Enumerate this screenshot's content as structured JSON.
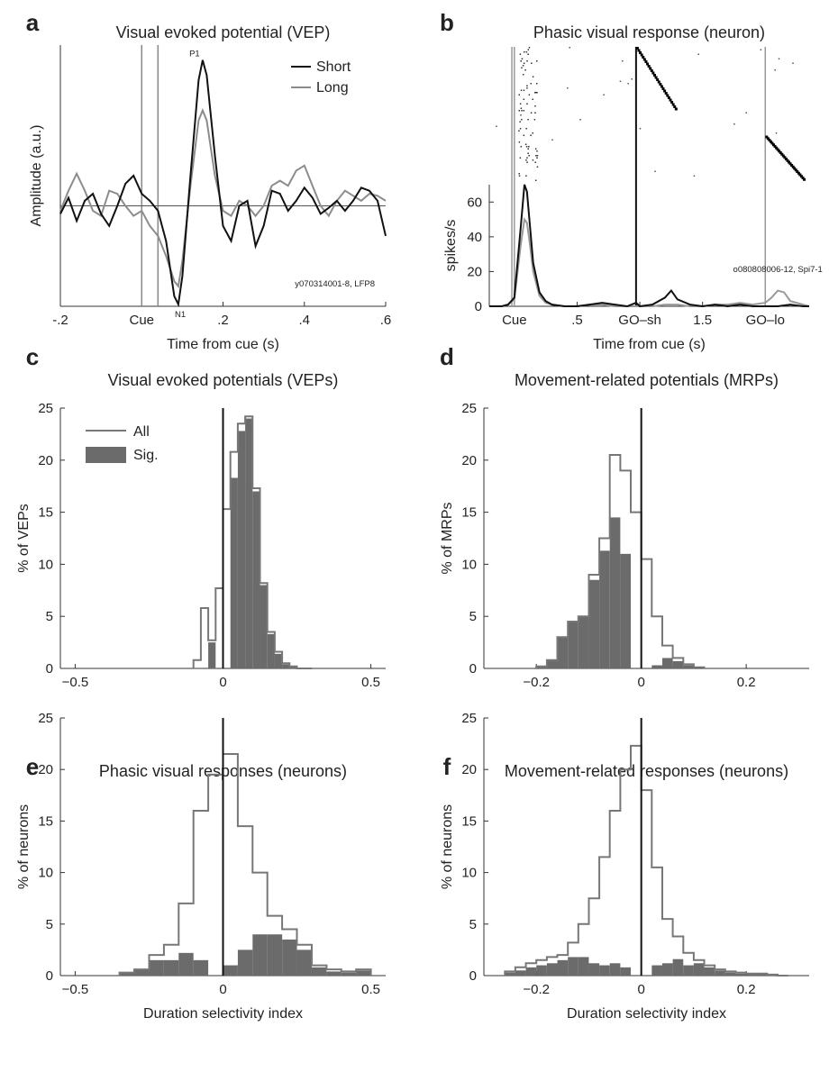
{
  "chart_data": [
    {
      "id": "a",
      "panel_label": "a",
      "type": "line",
      "title": "Visual evoked potential (VEP)",
      "xlabel": "Time from cue (s)",
      "ylabel": "Amplitude (a.u.)",
      "xlim": [
        -0.2,
        0.6
      ],
      "ylim": [
        -1.0,
        1.6
      ],
      "xticks": [
        -0.2,
        0,
        0.2,
        0.4,
        0.6
      ],
      "xticklabels": [
        "-.2",
        "Cue",
        ".2",
        ".4",
        ".6"
      ],
      "legend_position": "top-right",
      "vertical_lines": [
        0,
        0.04
      ],
      "horizontal_line": 0,
      "peak_labels": [
        {
          "text": "P1",
          "x": 0.13,
          "y": 1.45
        },
        {
          "text": "N1",
          "x": 0.095,
          "y": -0.98
        }
      ],
      "annotation": "y070314001-8, LFP8",
      "series": [
        {
          "name": "Short",
          "color": "#111111",
          "x": [
            -0.2,
            -0.18,
            -0.16,
            -0.14,
            -0.12,
            -0.1,
            -0.08,
            -0.06,
            -0.04,
            -0.02,
            0,
            0.02,
            0.04,
            0.06,
            0.08,
            0.09,
            0.1,
            0.12,
            0.14,
            0.15,
            0.16,
            0.18,
            0.2,
            0.22,
            0.24,
            0.26,
            0.28,
            0.3,
            0.32,
            0.34,
            0.36,
            0.38,
            0.4,
            0.42,
            0.44,
            0.46,
            0.48,
            0.5,
            0.52,
            0.54,
            0.56,
            0.58,
            0.6
          ],
          "y": [
            -0.08,
            0.08,
            -0.15,
            0.05,
            0.12,
            -0.08,
            -0.2,
            0.0,
            0.22,
            0.3,
            0.12,
            0.05,
            -0.05,
            -0.35,
            -0.9,
            -0.98,
            -0.7,
            0.3,
            1.25,
            1.45,
            1.3,
            0.5,
            -0.2,
            -0.35,
            0.0,
            0.05,
            -0.4,
            -0.2,
            0.15,
            0.12,
            -0.05,
            0.05,
            0.18,
            0.08,
            -0.08,
            -0.02,
            0.05,
            -0.05,
            0.05,
            0.18,
            0.15,
            0.05,
            -0.3
          ]
        },
        {
          "name": "Long",
          "color": "#8c8c8c",
          "x": [
            -0.2,
            -0.18,
            -0.16,
            -0.14,
            -0.12,
            -0.1,
            -0.08,
            -0.06,
            -0.04,
            -0.02,
            0,
            0.02,
            0.04,
            0.06,
            0.08,
            0.09,
            0.1,
            0.12,
            0.14,
            0.15,
            0.16,
            0.18,
            0.2,
            0.22,
            0.24,
            0.26,
            0.28,
            0.3,
            0.32,
            0.34,
            0.36,
            0.38,
            0.4,
            0.42,
            0.44,
            0.46,
            0.48,
            0.5,
            0.52,
            0.54,
            0.56,
            0.58,
            0.6
          ],
          "y": [
            -0.05,
            0.15,
            0.32,
            0.15,
            -0.05,
            -0.1,
            0.15,
            0.12,
            0.0,
            -0.1,
            -0.05,
            -0.2,
            -0.3,
            -0.5,
            -0.75,
            -0.8,
            -0.55,
            0.2,
            0.85,
            0.95,
            0.85,
            0.3,
            -0.05,
            -0.1,
            0.05,
            0.0,
            -0.1,
            0.0,
            0.2,
            0.25,
            0.2,
            0.35,
            0.4,
            0.2,
            0.0,
            -0.1,
            0.05,
            0.15,
            0.1,
            0.05,
            0.12,
            0.1,
            0.05
          ]
        }
      ]
    },
    {
      "id": "b",
      "panel_label": "b",
      "type": "line",
      "title": "Phasic visual response (neuron)",
      "xlabel": "Time from cue (s)",
      "ylabel": "spikes/s",
      "xlim": [
        -0.2,
        2.35
      ],
      "ylim": [
        0,
        70
      ],
      "yticks": [
        0,
        20,
        40,
        60
      ],
      "xticks": [
        0,
        0.5,
        1.0,
        1.5,
        2.0
      ],
      "xticklabels": [
        "Cue",
        ".5",
        "GO–sh",
        "1.5",
        "GO–lo"
      ],
      "annotation": "o080808006-12, Spi7-1",
      "event_lines": [
        {
          "x": -0.02,
          "color": "#999999"
        },
        {
          "x": 0.0,
          "color": "#999999"
        },
        {
          "x": 0.97,
          "color": "#111111"
        },
        {
          "x": 2.0,
          "color": "#999999"
        }
      ],
      "raster_description": "spike raster above PSTH; trials sorted by GO time",
      "series": [
        {
          "name": "Short",
          "color": "#111111",
          "x": [
            -0.2,
            -0.1,
            -0.05,
            0,
            0.05,
            0.08,
            0.1,
            0.12,
            0.15,
            0.2,
            0.25,
            0.3,
            0.4,
            0.5,
            0.6,
            0.7,
            0.8,
            0.9,
            0.97,
            1.0,
            1.1,
            1.2,
            1.25,
            1.3,
            1.4,
            1.5,
            1.6,
            1.7,
            1.8,
            1.9,
            2.0,
            2.1,
            2.2,
            2.3,
            2.35
          ],
          "y": [
            0,
            0,
            1,
            5,
            45,
            70,
            66,
            50,
            25,
            8,
            3,
            1,
            0,
            0,
            1,
            2,
            1,
            0,
            2,
            0,
            1,
            5,
            9,
            4,
            1,
            0,
            1,
            0,
            1,
            0,
            0,
            0,
            1,
            0,
            0
          ]
        },
        {
          "name": "Long",
          "color": "#999999",
          "x": [
            -0.2,
            -0.1,
            -0.05,
            0,
            0.05,
            0.08,
            0.1,
            0.12,
            0.15,
            0.2,
            0.25,
            0.3,
            0.4,
            0.5,
            0.6,
            0.7,
            0.8,
            0.9,
            1.0,
            1.1,
            1.2,
            1.3,
            1.4,
            1.5,
            1.6,
            1.7,
            1.8,
            1.9,
            2.0,
            2.05,
            2.1,
            2.15,
            2.2,
            2.3,
            2.35
          ],
          "y": [
            0,
            0,
            1,
            4,
            35,
            50,
            48,
            38,
            20,
            6,
            2,
            1,
            0,
            0,
            1,
            1,
            0,
            0,
            0,
            0,
            1,
            1,
            0,
            0,
            1,
            1,
            2,
            1,
            2,
            5,
            9,
            8,
            3,
            1,
            0
          ]
        }
      ]
    },
    {
      "id": "c",
      "panel_label": "c",
      "type": "histogram",
      "title": "Visual evoked potentials (VEPs)",
      "xlabel": "",
      "ylabel": "% of VEPs",
      "xlim": [
        -0.55,
        0.55
      ],
      "ylim": [
        0,
        25
      ],
      "xticks": [
        -0.5,
        0,
        0.5
      ],
      "xticklabels": [
        "−0.5",
        "0",
        "0.5"
      ],
      "yticks": [
        0,
        5,
        10,
        15,
        20,
        25
      ],
      "bin_edges": [
        -0.1,
        -0.075,
        -0.05,
        -0.025,
        0,
        0.025,
        0.05,
        0.075,
        0.1,
        0.125,
        0.15,
        0.175,
        0.2,
        0.225,
        0.25,
        0.275,
        0.3
      ],
      "series": [
        {
          "name": "All",
          "kind": "outline",
          "values": [
            0.8,
            5.8,
            2.7,
            7.7,
            15.3,
            20.8,
            23.5,
            24.2,
            17.3,
            8.2,
            3.5,
            1.6,
            0.5,
            0.2,
            0,
            0
          ]
        },
        {
          "name": "Sig.",
          "kind": "filled",
          "values": [
            0,
            0,
            2.5,
            0,
            0,
            18.3,
            22.8,
            24.0,
            17.0,
            8.0,
            3.3,
            1.4,
            0.4,
            0.2,
            0,
            0
          ]
        }
      ],
      "legend_position": "top-left"
    },
    {
      "id": "d",
      "panel_label": "d",
      "type": "histogram",
      "title": "Movement-related potentials (MRPs)",
      "xlabel": "",
      "ylabel": "% of MRPs",
      "xlim": [
        -0.3,
        0.32
      ],
      "ylim": [
        0,
        25
      ],
      "xticks": [
        -0.2,
        0,
        0.2
      ],
      "xticklabels": [
        "−0.2",
        "0",
        "0.2"
      ],
      "yticks": [
        0,
        5,
        10,
        15,
        20,
        25
      ],
      "bin_edges": [
        -0.2,
        -0.18,
        -0.16,
        -0.14,
        -0.12,
        -0.1,
        -0.08,
        -0.06,
        -0.04,
        -0.02,
        0,
        0.02,
        0.04,
        0.06,
        0.08,
        0.1,
        0.12
      ],
      "series": [
        {
          "name": "All",
          "kind": "outline",
          "values": [
            0.2,
            0.8,
            3.0,
            4.5,
            5.0,
            9.0,
            12.5,
            20.5,
            19.0,
            15.0,
            10.5,
            5.0,
            2.2,
            1.0,
            0.4,
            0.1
          ]
        },
        {
          "name": "Sig.",
          "kind": "filled",
          "values": [
            0.2,
            0.8,
            3.0,
            4.5,
            5.0,
            8.5,
            11.3,
            14.5,
            11.0,
            0,
            0,
            0.3,
            1.0,
            0.7,
            0.3,
            0
          ]
        }
      ]
    },
    {
      "id": "e",
      "panel_label": "e",
      "type": "histogram",
      "title": "Phasic visual responses (neurons)",
      "xlabel": "Duration selectivity index",
      "ylabel": "% of neurons",
      "xlim": [
        -0.55,
        0.55
      ],
      "ylim": [
        0,
        25
      ],
      "xticks": [
        -0.5,
        0,
        0.5
      ],
      "xticklabels": [
        "−0.5",
        "0",
        "0.5"
      ],
      "yticks": [
        0,
        5,
        10,
        15,
        20,
        25
      ],
      "bin_edges": [
        -0.35,
        -0.3,
        -0.25,
        -0.2,
        -0.15,
        -0.1,
        -0.05,
        0,
        0.05,
        0.1,
        0.15,
        0.2,
        0.25,
        0.3,
        0.35,
        0.4,
        0.45,
        0.5
      ],
      "series": [
        {
          "name": "All",
          "kind": "outline",
          "values": [
            0.3,
            0.6,
            2.0,
            3.0,
            7.0,
            16.0,
            19.5,
            21.5,
            14.5,
            10.0,
            5.8,
            4.5,
            3.0,
            1.0,
            0.6,
            0.4,
            0.6
          ]
        },
        {
          "name": "Sig.",
          "kind": "filled",
          "values": [
            0.3,
            0.6,
            1.5,
            1.5,
            2.2,
            1.5,
            0,
            1.0,
            2.5,
            4.0,
            4.0,
            3.5,
            2.5,
            0.8,
            0.4,
            0.3,
            0.5
          ]
        }
      ]
    },
    {
      "id": "f",
      "panel_label": "f",
      "type": "histogram",
      "title": "Movement-related responses (neurons)",
      "xlabel": "Duration selectivity index",
      "ylabel": "% of neurons",
      "xlim": [
        -0.3,
        0.32
      ],
      "ylim": [
        0,
        25
      ],
      "xticks": [
        -0.2,
        0,
        0.2
      ],
      "xticklabels": [
        "−0.2",
        "0",
        "0.2"
      ],
      "yticks": [
        0,
        5,
        10,
        15,
        20,
        25
      ],
      "bin_edges": [
        -0.26,
        -0.24,
        -0.22,
        -0.2,
        -0.18,
        -0.16,
        -0.14,
        -0.12,
        -0.1,
        -0.08,
        -0.06,
        -0.04,
        -0.02,
        0,
        0.02,
        0.04,
        0.06,
        0.08,
        0.1,
        0.12,
        0.14,
        0.16,
        0.18,
        0.2,
        0.22,
        0.24,
        0.26,
        0.28
      ],
      "series": [
        {
          "name": "All",
          "kind": "outline",
          "values": [
            0.4,
            0.8,
            1.2,
            1.5,
            1.8,
            2.0,
            3.2,
            5.0,
            7.5,
            11.5,
            16.0,
            20.0,
            22.3,
            18.0,
            10.5,
            5.5,
            3.8,
            2.2,
            1.5,
            1.0,
            0.6,
            0.4,
            0.3,
            0.2,
            0.2,
            0.1,
            0
          ]
        },
        {
          "name": "Sig.",
          "kind": "filled",
          "values": [
            0.3,
            0.5,
            0.8,
            1.0,
            1.2,
            1.5,
            1.8,
            1.8,
            1.2,
            1.0,
            1.2,
            0.8,
            0,
            0,
            1.0,
            1.2,
            1.6,
            1.0,
            1.2,
            0.8,
            0.5,
            0.3,
            0.2,
            0.2,
            0.2,
            0.1,
            0
          ]
        }
      ]
    }
  ]
}
